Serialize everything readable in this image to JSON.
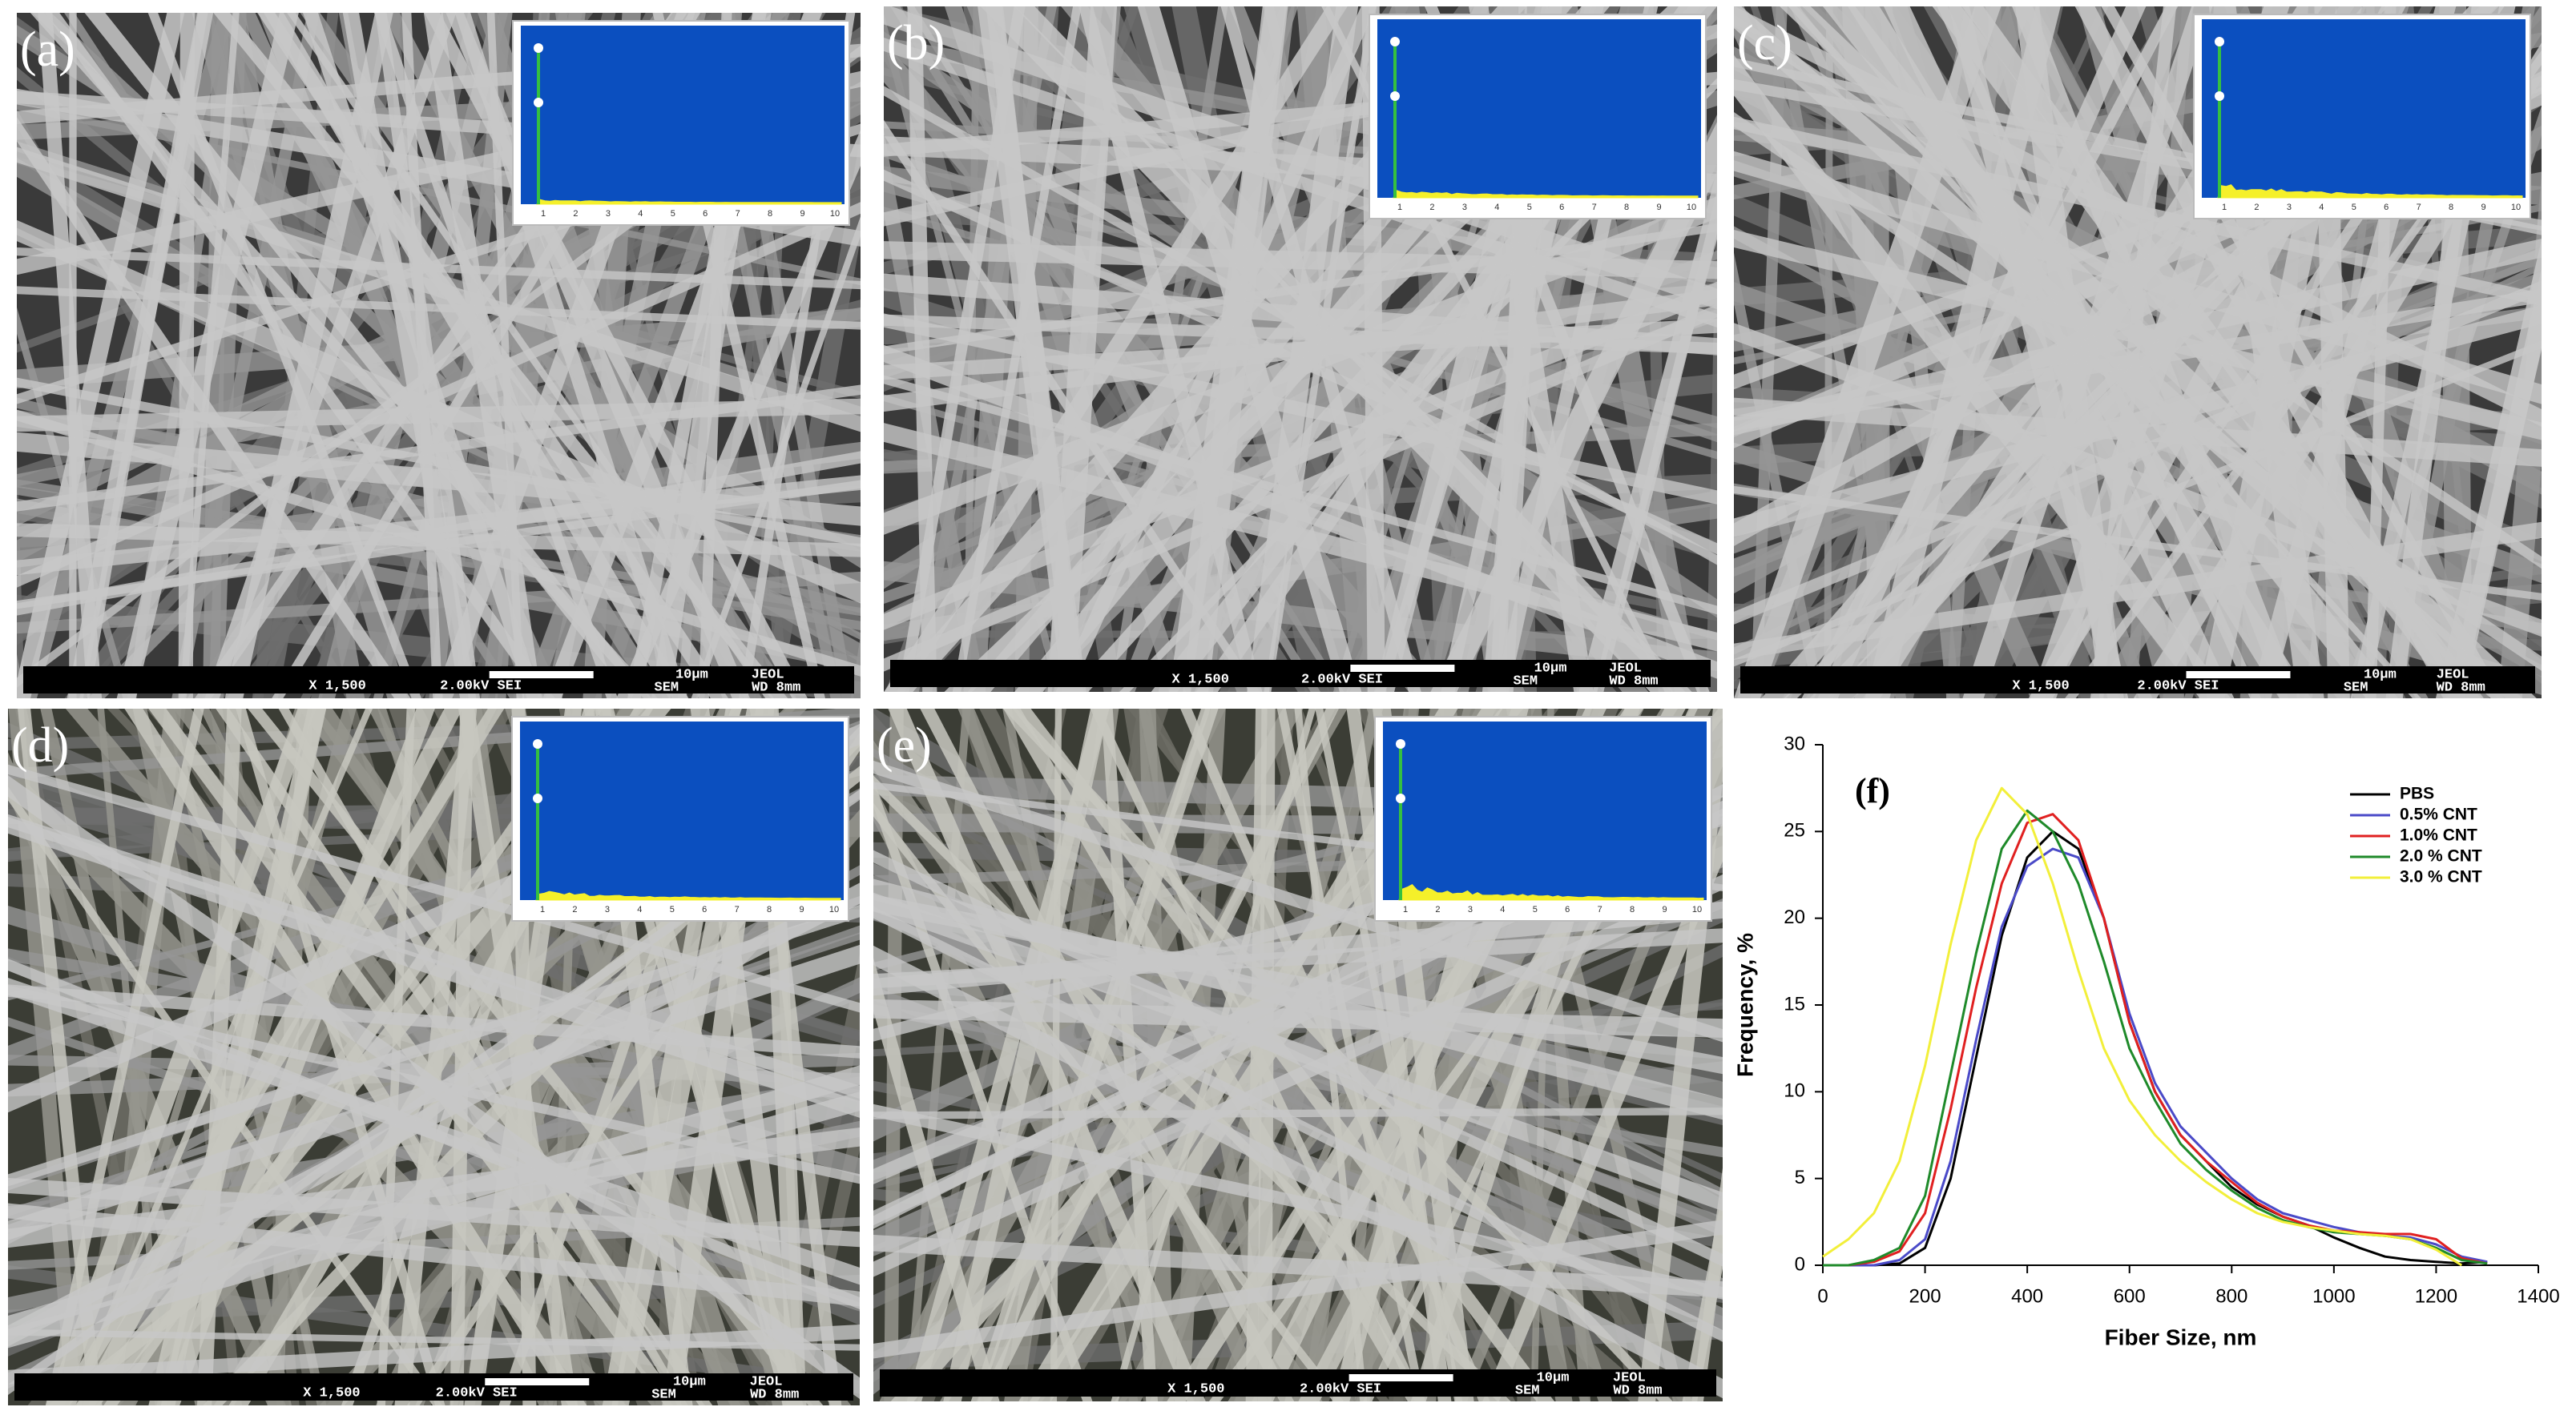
{
  "panels": [
    {
      "label": "(a)"
    },
    {
      "label": "(b)"
    },
    {
      "label": "(c)"
    },
    {
      "label": "(d)"
    },
    {
      "label": "(e)"
    }
  ],
  "scale_bar": {
    "magnification": "X 1,500",
    "voltage": "2.00kV SEI",
    "scale": "10µm",
    "maker": "JEOL",
    "mode": "SEM",
    "distance": "WD 8mm"
  },
  "inset_xticks": [
    1,
    2,
    3,
    4,
    5,
    6,
    7,
    8,
    9,
    10
  ],
  "chart_data": {
    "type": "line",
    "panel_label": "(f)",
    "x_label": "Fiber Size, nm",
    "y_label": "Frequency, %",
    "x": [
      0,
      50,
      100,
      150,
      200,
      250,
      300,
      350,
      400,
      450,
      500,
      550,
      600,
      650,
      700,
      750,
      800,
      850,
      900,
      950,
      1000,
      1050,
      1100,
      1150,
      1200,
      1250,
      1300
    ],
    "series": [
      {
        "name": "PBS",
        "color": "#000000",
        "values": [
          0,
          0,
          0,
          0.1,
          1,
          5,
          12,
          19,
          23.5,
          25,
          24,
          20,
          14,
          10,
          7.5,
          6,
          4.5,
          3.5,
          2.8,
          2.3,
          1.6,
          1,
          0.5,
          0.3,
          0.2,
          0.1,
          0.2
        ]
      },
      {
        "name": "0.5% CNT",
        "color": "#4a4ac8",
        "values": [
          0,
          0,
          0,
          0.3,
          1.5,
          6,
          13,
          19.5,
          23,
          24,
          23.5,
          20,
          14.5,
          10.5,
          8,
          6.5,
          5,
          3.8,
          3,
          2.6,
          2.2,
          1.9,
          1.7,
          1.6,
          1.2,
          0.5,
          0.2
        ]
      },
      {
        "name": "1.0% CNT",
        "color": "#e02020",
        "values": [
          0,
          0,
          0.2,
          0.8,
          3,
          9,
          16,
          22,
          25.5,
          26,
          24.5,
          20,
          14,
          10,
          7.5,
          6,
          4.8,
          3.6,
          2.8,
          2.3,
          2,
          1.9,
          1.8,
          1.8,
          1.5,
          0.4,
          0.1
        ]
      },
      {
        "name": "2.0 % CNT",
        "color": "#1f8a2a",
        "values": [
          0,
          0,
          0.3,
          1,
          4,
          11,
          18,
          24,
          26.2,
          25,
          22,
          17.5,
          12.5,
          9.5,
          7,
          5.5,
          4.3,
          3.3,
          2.6,
          2.2,
          1.9,
          1.8,
          1.7,
          1.5,
          1,
          0.3,
          0.1
        ]
      },
      {
        "name": "3.0 % CNT",
        "color": "#f2ef3a",
        "values": [
          0.5,
          1.5,
          3,
          6,
          11.5,
          18.5,
          24.5,
          27.5,
          26,
          22,
          17,
          12.5,
          9.5,
          7.5,
          6,
          4.8,
          3.8,
          3,
          2.5,
          2.2,
          2,
          1.8,
          1.7,
          1.5,
          0.9,
          0,
          null
        ]
      }
    ],
    "xlim": [
      0,
      1400
    ],
    "xticks": [
      0,
      200,
      400,
      600,
      800,
      1000,
      1200,
      1400
    ],
    "ylim": [
      0,
      30
    ],
    "yticks": [
      0,
      5,
      10,
      15,
      20,
      25,
      30
    ],
    "legend": "upper right"
  }
}
